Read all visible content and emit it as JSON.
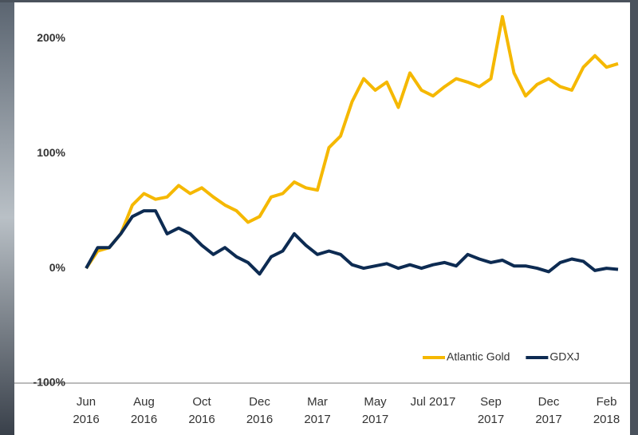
{
  "chart_data": {
    "type": "line",
    "x": [
      0,
      0.2,
      0.4,
      0.6,
      0.8,
      1,
      1.2,
      1.4,
      1.6,
      1.8,
      2,
      2.2,
      2.4,
      2.6,
      2.8,
      3,
      3.2,
      3.4,
      3.6,
      3.8,
      4,
      4.2,
      4.4,
      4.6,
      4.8,
      5,
      5.2,
      5.4,
      5.6,
      5.8,
      6,
      6.2,
      6.4,
      6.6,
      6.8,
      7,
      7.2,
      7.4,
      7.6,
      7.8,
      8,
      8.2,
      8.4,
      8.6,
      8.8,
      9,
      9.2
    ],
    "series": [
      {
        "name": "Atlantic Gold",
        "color": "#f5b800",
        "values": [
          0,
          15,
          18,
          30,
          55,
          65,
          60,
          62,
          72,
          65,
          70,
          62,
          55,
          50,
          40,
          45,
          62,
          65,
          75,
          70,
          68,
          105,
          115,
          145,
          165,
          155,
          162,
          140,
          170,
          155,
          150,
          158,
          165,
          162,
          158,
          165,
          219,
          170,
          150,
          160,
          165,
          158,
          155,
          175,
          185,
          175,
          178
        ]
      },
      {
        "name": "GDXJ",
        "color": "#0d2b52",
        "values": [
          0,
          18,
          18,
          30,
          45,
          50,
          50,
          30,
          35,
          30,
          20,
          12,
          18,
          10,
          5,
          -5,
          10,
          15,
          30,
          20,
          12,
          15,
          12,
          3,
          0,
          2,
          4,
          0,
          3,
          0,
          3,
          5,
          2,
          12,
          8,
          5,
          7,
          2,
          2,
          0,
          -3,
          5,
          8,
          6,
          -2,
          0,
          -1
        ]
      }
    ],
    "xlim": [
      0,
      9.2
    ],
    "xticks": [
      {
        "value": 0,
        "label": "Jun 2016"
      },
      {
        "value": 1,
        "label": "Aug 2016"
      },
      {
        "value": 2,
        "label": "Oct 2016"
      },
      {
        "value": 3,
        "label": "Dec 2016"
      },
      {
        "value": 4,
        "label": "Mar 2017"
      },
      {
        "value": 5,
        "label": "May 2017"
      },
      {
        "value": 6,
        "label": "Jul 2017"
      },
      {
        "value": 7,
        "label": "Sep 2017"
      },
      {
        "value": 8,
        "label": "Dec 2017"
      },
      {
        "value": 9,
        "label": "Feb 2018"
      }
    ],
    "ylim": [
      -100,
      230
    ],
    "yticks": [
      {
        "value": -100,
        "label": "-100%"
      },
      {
        "value": 0,
        "label": "0%"
      },
      {
        "value": 100,
        "label": "100%"
      },
      {
        "value": 200,
        "label": "200%"
      }
    ],
    "legend": "lower-right"
  }
}
